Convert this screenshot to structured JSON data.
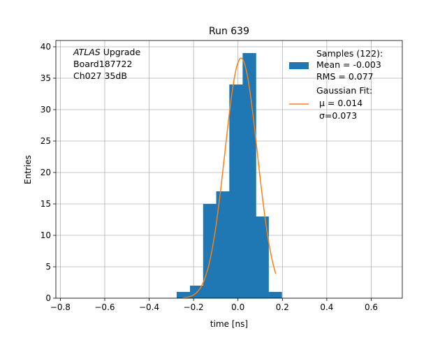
{
  "chart_data": {
    "type": "bar",
    "title": "Run 639",
    "xlabel": "time [ns]",
    "ylabel": "Entries",
    "xlim": [
      -0.82,
      0.74
    ],
    "ylim": [
      0,
      41
    ],
    "xticks": [
      -0.8,
      -0.6,
      -0.4,
      -0.2,
      0.0,
      0.2,
      0.4,
      0.6
    ],
    "xtick_labels": [
      "−0.8",
      "−0.6",
      "−0.4",
      "−0.2",
      "0.0",
      "0.2",
      "0.4",
      "0.6"
    ],
    "yticks": [
      0,
      5,
      10,
      15,
      20,
      25,
      30,
      35,
      40
    ],
    "grid": true,
    "bin_edges": [
      -0.276,
      -0.216,
      -0.157,
      -0.098,
      -0.039,
      0.021,
      0.081,
      0.138,
      0.197
    ],
    "counts": [
      1,
      2,
      15,
      17,
      34,
      39,
      13,
      1
    ],
    "fit": {
      "mu": 0.014,
      "sigma": 0.073,
      "amplitude": 38.2,
      "xrange": [
        -0.25,
        0.17
      ]
    },
    "annotation": {
      "italic": "ATLAS",
      "line1_rest": " Upgrade",
      "line2": " Board187722",
      "line3": " Ch027 35dB"
    },
    "legend": {
      "placement": "top-right",
      "samples": [
        "Samples (122):",
        " Mean = -0.003",
        " RMS = 0.077"
      ],
      "fit": [
        "Gaussian Fit:",
        "μ = 0.014",
        "σ=0.073"
      ]
    },
    "colors": {
      "bars": "#1f77b4",
      "fit": "#ff7f0e",
      "grid": "#b0b0b0"
    }
  }
}
